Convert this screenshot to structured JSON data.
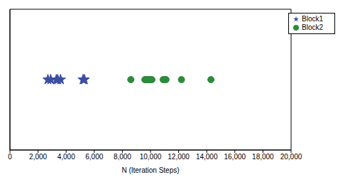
{
  "chart_data": {
    "type": "scatter",
    "x_label": "N (Iteration Steps)",
    "xlim": [
      0,
      20000
    ],
    "xticks": [
      0,
      {
        "value": 2000,
        "label": "2,000"
      },
      {
        "value": 4000,
        "label": "4,000"
      },
      {
        "value": 6000,
        "label": "6,000"
      },
      {
        "value": 8000,
        "label": "8,000"
      },
      {
        "value": 10000,
        "label": "10,000"
      },
      {
        "value": 12000,
        "label": "12,000"
      },
      {
        "value": 14000,
        "label": "14,000"
      },
      {
        "value": 16000,
        "label": "16,000"
      },
      {
        "value": 18000,
        "label": "18,000"
      },
      {
        "value": 20000,
        "label": "20,000"
      }
    ],
    "ylim": [
      -1,
      1
    ],
    "yticks": [],
    "tick_labels": "x",
    "grid": false,
    "legend": "upper right",
    "series": [
      {
        "name": "Block2",
        "color": "#2e8b3e",
        "marker": "circle",
        "x": [
          8600,
          9600,
          9700,
          9800,
          9900,
          10000,
          10100,
          10900,
          11000,
          11100,
          12200,
          14300
        ],
        "values": [
          0,
          0,
          0,
          0,
          0,
          0,
          0,
          0,
          0,
          0,
          0,
          0
        ]
      },
      {
        "name": "Block1",
        "color": "#3c4fa0",
        "marker": "star",
        "x": [
          2700,
          2900,
          3300,
          3400,
          3600,
          5200,
          5300
        ],
        "values": [
          0,
          0,
          0,
          0,
          0,
          0,
          0
        ]
      }
    ]
  }
}
